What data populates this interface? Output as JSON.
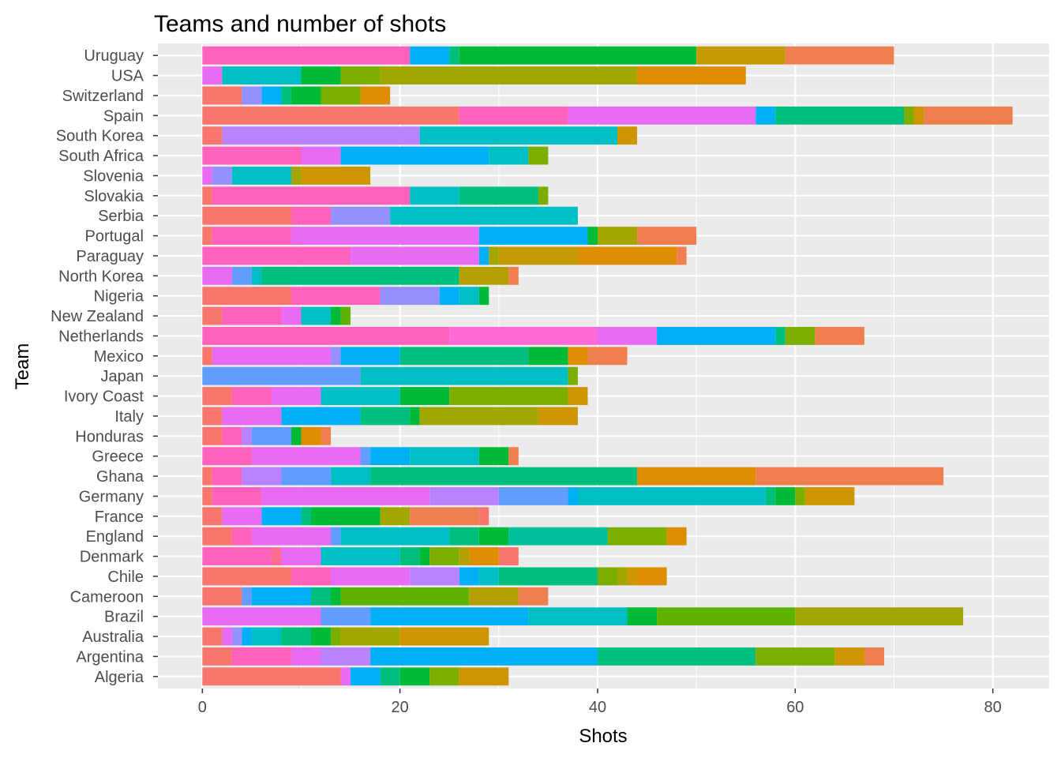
{
  "chart_data": {
    "type": "bar",
    "orientation": "horizontal",
    "stacked": true,
    "title": "Teams and number of shots",
    "xlabel": "Shots",
    "ylabel": "Team",
    "xlim": [
      -4.5,
      85.7
    ],
    "xticks": [
      0,
      20,
      40,
      60,
      80
    ],
    "grid": true,
    "legend": "none",
    "categories": [
      "Algeria",
      "Argentina",
      "Australia",
      "Brazil",
      "Cameroon",
      "Chile",
      "Denmark",
      "England",
      "France",
      "Germany",
      "Ghana",
      "Greece",
      "Honduras",
      "Italy",
      "Ivory Coast",
      "Japan",
      "Mexico",
      "Netherlands",
      "New Zealand",
      "Nigeria",
      "North Korea",
      "Paraguay",
      "Portugal",
      "Serbia",
      "Slovakia",
      "Slovenia",
      "South Africa",
      "South Korea",
      "Spain",
      "Switzerland",
      "USA",
      "Uruguay"
    ],
    "segments": [
      [
        [
          14,
          "#F8766D"
        ],
        [
          1,
          "#E76BF3"
        ],
        [
          3,
          "#00B0F6"
        ],
        [
          2,
          "#00BF7D"
        ],
        [
          3,
          "#00BA38"
        ],
        [
          3,
          "#7CAE00"
        ],
        [
          5,
          "#CD9600"
        ]
      ],
      [
        [
          3,
          "#F8766D"
        ],
        [
          6,
          "#FF62BC"
        ],
        [
          3,
          "#E76BF3"
        ],
        [
          5,
          "#B983FF"
        ],
        [
          23,
          "#00B0F6"
        ],
        [
          16,
          "#00BF7D"
        ],
        [
          8,
          "#7CAE00"
        ],
        [
          3,
          "#CD9600"
        ],
        [
          2,
          "#F07F4F"
        ]
      ],
      [
        [
          2,
          "#F8766D"
        ],
        [
          1,
          "#E76BF3"
        ],
        [
          1,
          "#9590FF"
        ],
        [
          1,
          "#00B0F6"
        ],
        [
          3,
          "#00BFC4"
        ],
        [
          3,
          "#00BF7D"
        ],
        [
          2,
          "#00BA38"
        ],
        [
          1,
          "#7CAE00"
        ],
        [
          6,
          "#A3A500"
        ],
        [
          9,
          "#CD9600"
        ]
      ],
      [
        [
          12,
          "#E76BF3"
        ],
        [
          5,
          "#619CFF"
        ],
        [
          16,
          "#00B0F6"
        ],
        [
          10,
          "#00BFC4"
        ],
        [
          3,
          "#00BA38"
        ],
        [
          14,
          "#5DB300"
        ],
        [
          17,
          "#A3A500"
        ]
      ],
      [
        [
          4,
          "#F8766D"
        ],
        [
          1,
          "#619CFF"
        ],
        [
          6,
          "#00B0F6"
        ],
        [
          2,
          "#00BF7D"
        ],
        [
          1,
          "#00BA38"
        ],
        [
          13,
          "#5DB300"
        ],
        [
          5,
          "#B3A000"
        ],
        [
          3,
          "#F07F4F"
        ]
      ],
      [
        [
          9,
          "#F8766D"
        ],
        [
          4,
          "#FF62BC"
        ],
        [
          8,
          "#E76BF3"
        ],
        [
          5,
          "#B983FF"
        ],
        [
          2,
          "#00B0F6"
        ],
        [
          2,
          "#00BFC4"
        ],
        [
          10,
          "#00BF7D"
        ],
        [
          2,
          "#7CAE00"
        ],
        [
          1,
          "#A3A500"
        ],
        [
          1,
          "#CD9600"
        ],
        [
          3,
          "#DE8C00"
        ]
      ],
      [
        [
          7,
          "#FF62BC"
        ],
        [
          1,
          "#FF6C91"
        ],
        [
          4,
          "#E76BF3"
        ],
        [
          8,
          "#00BFC4"
        ],
        [
          2,
          "#00BF7D"
        ],
        [
          1,
          "#00BA38"
        ],
        [
          3,
          "#7CAE00"
        ],
        [
          1,
          "#B3A000"
        ],
        [
          3,
          "#DE8C00"
        ],
        [
          2,
          "#F8766D"
        ]
      ],
      [
        [
          3,
          "#F8766D"
        ],
        [
          2,
          "#FF62BC"
        ],
        [
          8,
          "#E76BF3"
        ],
        [
          1,
          "#619CFF"
        ],
        [
          11,
          "#00BFC4"
        ],
        [
          3,
          "#00BF7D"
        ],
        [
          3,
          "#00BA38"
        ],
        [
          10,
          "#00C19A"
        ],
        [
          6,
          "#7CAE00"
        ],
        [
          2,
          "#DE8C00"
        ]
      ],
      [
        [
          2,
          "#F8766D"
        ],
        [
          4,
          "#E76BF3"
        ],
        [
          4,
          "#00B0F6"
        ],
        [
          1,
          "#00BF7D"
        ],
        [
          7,
          "#00BA38"
        ],
        [
          3,
          "#A3A500"
        ],
        [
          7,
          "#F07F4F"
        ],
        [
          1,
          "#F8766D"
        ]
      ],
      [
        [
          1,
          "#F8766D"
        ],
        [
          5,
          "#FF62BC"
        ],
        [
          17,
          "#E76BF3"
        ],
        [
          7,
          "#B983FF"
        ],
        [
          7,
          "#619CFF"
        ],
        [
          1,
          "#00B0F6"
        ],
        [
          19,
          "#00BFC4"
        ],
        [
          1,
          "#00BF7D"
        ],
        [
          2,
          "#00BA38"
        ],
        [
          1,
          "#7CAE00"
        ],
        [
          5,
          "#CD9600"
        ]
      ],
      [
        [
          1,
          "#F8766D"
        ],
        [
          3,
          "#FF62BC"
        ],
        [
          4,
          "#B983FF"
        ],
        [
          5,
          "#619CFF"
        ],
        [
          4,
          "#00BFC4"
        ],
        [
          27,
          "#00BF7D"
        ],
        [
          12,
          "#DE8C00"
        ],
        [
          19,
          "#F07F4F"
        ]
      ],
      [
        [
          5,
          "#FF62BC"
        ],
        [
          11,
          "#E76BF3"
        ],
        [
          1,
          "#619CFF"
        ],
        [
          4,
          "#00B0F6"
        ],
        [
          7,
          "#00BFC4"
        ],
        [
          3,
          "#00BA38"
        ],
        [
          1,
          "#F07F4F"
        ]
      ],
      [
        [
          2,
          "#F8766D"
        ],
        [
          2,
          "#FF62BC"
        ],
        [
          1,
          "#B983FF"
        ],
        [
          4,
          "#619CFF"
        ],
        [
          1,
          "#00BA38"
        ],
        [
          2,
          "#DE8C00"
        ],
        [
          1,
          "#F07F4F"
        ]
      ],
      [
        [
          2,
          "#F8766D"
        ],
        [
          6,
          "#E76BF3"
        ],
        [
          8,
          "#00B0F6"
        ],
        [
          5,
          "#00BF7D"
        ],
        [
          1,
          "#00BA38"
        ],
        [
          12,
          "#A3A500"
        ],
        [
          4,
          "#CD9600"
        ]
      ],
      [
        [
          3,
          "#F8766D"
        ],
        [
          4,
          "#FF62BC"
        ],
        [
          5,
          "#E76BF3"
        ],
        [
          8,
          "#00BFC4"
        ],
        [
          5,
          "#00BA38"
        ],
        [
          12,
          "#7CAE00"
        ],
        [
          2,
          "#CD9600"
        ]
      ],
      [
        [
          16,
          "#619CFF"
        ],
        [
          21,
          "#00BFC4"
        ],
        [
          1,
          "#7CAE00"
        ]
      ],
      [
        [
          1,
          "#F8766D"
        ],
        [
          12,
          "#E76BF3"
        ],
        [
          1,
          "#9590FF"
        ],
        [
          6,
          "#00B0F6"
        ],
        [
          13,
          "#00BF7D"
        ],
        [
          4,
          "#00BA38"
        ],
        [
          2,
          "#DE8C00"
        ],
        [
          4,
          "#F07F4F"
        ]
      ],
      [
        [
          25,
          "#FF62BC"
        ],
        [
          15,
          "#FF6AD5"
        ],
        [
          6,
          "#E76BF3"
        ],
        [
          12,
          "#00B0F6"
        ],
        [
          1,
          "#00BF7D"
        ],
        [
          3,
          "#7CAE00"
        ],
        [
          5,
          "#F07F4F"
        ]
      ],
      [
        [
          2,
          "#F8766D"
        ],
        [
          6,
          "#FF62BC"
        ],
        [
          2,
          "#E76BF3"
        ],
        [
          3,
          "#00BFC4"
        ],
        [
          1,
          "#00BA38"
        ],
        [
          1,
          "#5DB300"
        ]
      ],
      [
        [
          9,
          "#F8766D"
        ],
        [
          9,
          "#FF62BC"
        ],
        [
          6,
          "#9590FF"
        ],
        [
          2,
          "#00B0F6"
        ],
        [
          2,
          "#00BFC4"
        ],
        [
          1,
          "#00BA38"
        ]
      ],
      [
        [
          3,
          "#E76BF3"
        ],
        [
          2,
          "#619CFF"
        ],
        [
          1,
          "#00BFC4"
        ],
        [
          20,
          "#00BF7D"
        ],
        [
          5,
          "#B3A000"
        ],
        [
          1,
          "#F07F4F"
        ]
      ],
      [
        [
          15,
          "#FF62BC"
        ],
        [
          13,
          "#E76BF3"
        ],
        [
          1,
          "#00B0F6"
        ],
        [
          1,
          "#A3A500"
        ],
        [
          8,
          "#C49A00"
        ],
        [
          10,
          "#DE8C00"
        ],
        [
          1,
          "#F07F4F"
        ]
      ],
      [
        [
          1,
          "#F8766D"
        ],
        [
          8,
          "#FF62BC"
        ],
        [
          19,
          "#E76BF3"
        ],
        [
          11,
          "#00B0F6"
        ],
        [
          1,
          "#00BA38"
        ],
        [
          4,
          "#A3A500"
        ],
        [
          6,
          "#F07F4F"
        ]
      ],
      [
        [
          9,
          "#F8766D"
        ],
        [
          4,
          "#FF62BC"
        ],
        [
          6,
          "#9590FF"
        ],
        [
          19,
          "#00BFC4"
        ]
      ],
      [
        [
          1,
          "#F8766D"
        ],
        [
          20,
          "#FF62BC"
        ],
        [
          5,
          "#00BFC4"
        ],
        [
          8,
          "#00BF7D"
        ],
        [
          1,
          "#7CAE00"
        ]
      ],
      [
        [
          1,
          "#E76BF3"
        ],
        [
          2,
          "#9590FF"
        ],
        [
          6,
          "#00BFC4"
        ],
        [
          1,
          "#A3A500"
        ],
        [
          7,
          "#CD9600"
        ]
      ],
      [
        [
          10,
          "#FF62BC"
        ],
        [
          4,
          "#E76BF3"
        ],
        [
          15,
          "#00B0F6"
        ],
        [
          4,
          "#00BFC4"
        ],
        [
          2,
          "#7CAE00"
        ]
      ],
      [
        [
          2,
          "#F8766D"
        ],
        [
          20,
          "#B983FF"
        ],
        [
          20,
          "#00BFC4"
        ],
        [
          2,
          "#CD9600"
        ]
      ],
      [
        [
          26,
          "#F8766D"
        ],
        [
          11,
          "#FF62BC"
        ],
        [
          19,
          "#E76BF3"
        ],
        [
          2,
          "#00B0F6"
        ],
        [
          13,
          "#00BF7D"
        ],
        [
          1,
          "#7CAE00"
        ],
        [
          1,
          "#CD9600"
        ],
        [
          9,
          "#F07F4F"
        ]
      ],
      [
        [
          4,
          "#F8766D"
        ],
        [
          2,
          "#9590FF"
        ],
        [
          2,
          "#00B0F6"
        ],
        [
          1,
          "#00BF7D"
        ],
        [
          3,
          "#00BA38"
        ],
        [
          4,
          "#7CAE00"
        ],
        [
          3,
          "#DE8C00"
        ]
      ],
      [
        [
          2,
          "#E76BF3"
        ],
        [
          8,
          "#00BFC4"
        ],
        [
          4,
          "#00BA38"
        ],
        [
          4,
          "#7CAE00"
        ],
        [
          26,
          "#A3A500"
        ],
        [
          11,
          "#DE8C00"
        ]
      ],
      [
        [
          21,
          "#FF62BC"
        ],
        [
          4,
          "#00B0F6"
        ],
        [
          1,
          "#00BF7D"
        ],
        [
          24,
          "#00BA38"
        ],
        [
          9,
          "#C49A00"
        ],
        [
          11,
          "#F07F4F"
        ]
      ]
    ]
  }
}
